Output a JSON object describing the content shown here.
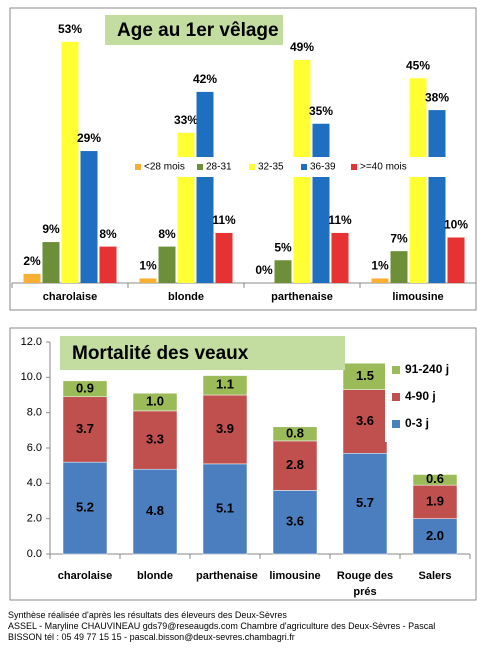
{
  "chart_data": [
    {
      "type": "bar",
      "title": "Age au 1er vêlage",
      "categories": [
        "charolaise",
        "blonde",
        "parthenaise",
        "limousine"
      ],
      "series": [
        {
          "name": "<28 mois",
          "color": "#f7b033",
          "values": [
            2,
            1,
            0,
            1
          ],
          "value_labels": [
            "2%",
            "1%",
            "0%",
            "1%"
          ]
        },
        {
          "name": "28-31",
          "color": "#6e8f3a",
          "values": [
            9,
            8,
            5,
            7
          ],
          "value_labels": [
            "9%",
            "8%",
            "5%",
            "7%"
          ]
        },
        {
          "name": "32-35",
          "color": "#ffff33",
          "values": [
            53,
            33,
            49,
            45
          ],
          "value_labels": [
            "53%",
            "33%",
            "49%",
            "45%"
          ]
        },
        {
          "name": "36-39",
          "color": "#1f6fc0",
          "values": [
            29,
            42,
            35,
            38
          ],
          "value_labels": [
            "29%",
            "42%",
            "35%",
            "38%"
          ]
        },
        {
          "name": ">=40 mois",
          "color": "#e63232",
          "values": [
            8,
            11,
            11,
            10
          ],
          "value_labels": [
            "8%",
            "11%",
            "11%",
            "10%"
          ]
        }
      ],
      "ylim": [
        0,
        60
      ],
      "legend": "center"
    },
    {
      "type": "stacked_bar",
      "title": "Mortalité des veaux",
      "categories": [
        "charolaise",
        "blonde",
        "parthenaise",
        "limousine",
        "Rouge des prés",
        "Salers"
      ],
      "series": [
        {
          "name": "0-3 j",
          "color": "#4a7ebf",
          "values": [
            5.2,
            4.8,
            5.1,
            3.6,
            5.7,
            2.0
          ],
          "value_labels": [
            "5.2",
            "4.8",
            "5.1",
            "3.6",
            "5.7",
            "2.0"
          ]
        },
        {
          "name": "4-90 j",
          "color": "#c0504d",
          "values": [
            3.7,
            3.3,
            3.9,
            2.8,
            3.6,
            1.9
          ]
        },
        {
          "name": "91-240 j",
          "color": "#9bbb59",
          "values": [
            0.9,
            1.0,
            1.1,
            0.8,
            1.5,
            0.6
          ],
          "value_labels": [
            "0.9",
            "1.0",
            "1.1",
            "0.8",
            "1.5",
            "0.6"
          ]
        }
      ],
      "ylim": [
        0,
        12
      ],
      "yticks": [
        {
          "value": 0,
          "label": "0.0"
        },
        {
          "value": 2,
          "label": "2.0"
        },
        {
          "value": 4,
          "label": "4.0"
        },
        {
          "value": 6,
          "label": "6.0"
        },
        {
          "value": 8,
          "label": "8.0"
        },
        {
          "value": 10,
          "label": "10.0"
        },
        {
          "value": 12,
          "label": "12.0"
        }
      ],
      "legend": "upper right"
    }
  ],
  "footer": [
    "Synthèse réalisée d'après les résultats des éleveurs des Deux-Sèvres",
    "ASSEL - Maryline CHAUVINEAU gds79@reseaugds.com Chambre d'agriculture des Deux-Sèvres - Pascal",
    "BISSON tél : 05 49 77 15 15 - pascal.bisson@deux-sevres.chambagri.fr"
  ]
}
